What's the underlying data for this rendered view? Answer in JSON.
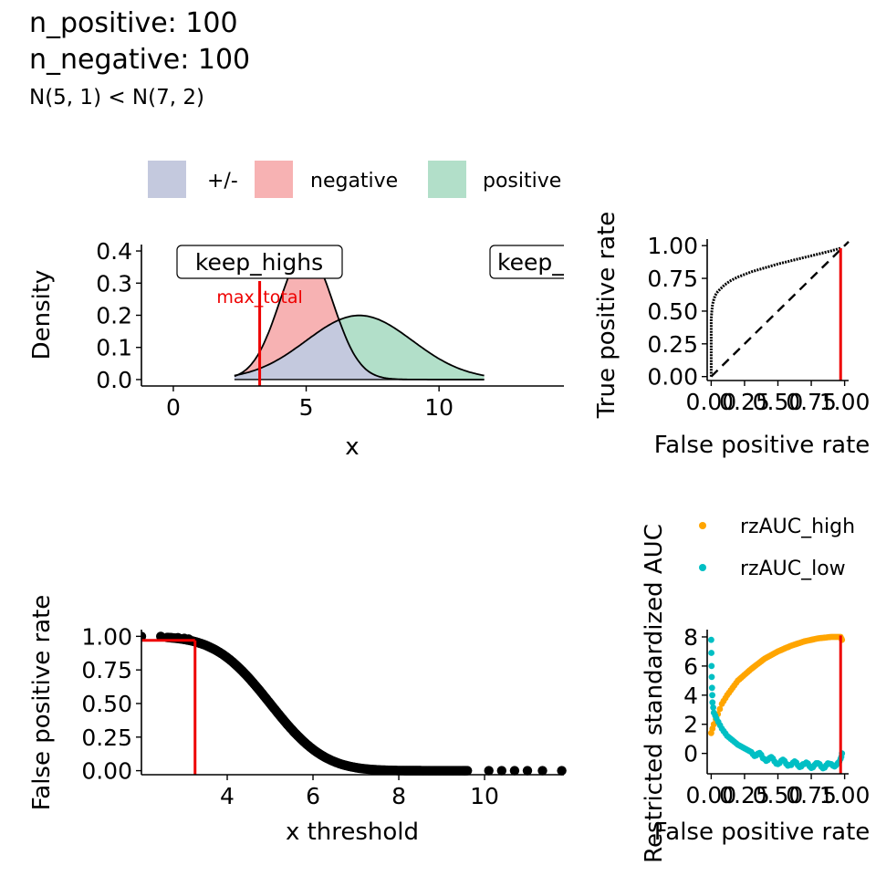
{
  "header": {
    "line1": "n_positive: 100",
    "line2": "n_negative: 100",
    "subtitle": "N(5, 1) < N(7, 2)"
  },
  "colors": {
    "both_fill": "#c4c9de",
    "negative_fill": "#f7b2b3",
    "positive_fill": "#b2dfc9",
    "threshold": "#ee0000",
    "rz_high": "#ffa500",
    "rz_low": "#00bfc4"
  },
  "chart_data": [
    {
      "id": "density",
      "type": "area",
      "xlabel": "x",
      "ylabel": "Density",
      "xlim": [
        -1.2,
        14.7
      ],
      "ylim": [
        -0.02,
        0.42
      ],
      "x_ticks": [
        0,
        5,
        10
      ],
      "x_tick_labels": [
        "0",
        "5",
        "10"
      ],
      "y_ticks": [
        0.0,
        0.1,
        0.2,
        0.3,
        0.4
      ],
      "y_tick_labels": [
        "0.0",
        "0.1",
        "0.2",
        "0.3",
        "0.4"
      ],
      "legend": {
        "position": "top",
        "entries": [
          {
            "label": "+/-",
            "color_key": "both_fill"
          },
          {
            "label": "negative",
            "color_key": "negative_fill"
          },
          {
            "label": "positive",
            "color_key": "positive_fill"
          }
        ]
      },
      "series": [
        {
          "name": "negative",
          "distribution": "N(5, 1)",
          "mean": 5,
          "sd": 1
        },
        {
          "name": "positive",
          "distribution": "N(7, 2)",
          "mean": 7,
          "sd": 2
        }
      ],
      "x_range": [
        2.3,
        11.7
      ],
      "threshold_x": 3.25,
      "annotations": [
        {
          "text": "keep_highs",
          "x": 3.2,
          "y": 0.35,
          "style": "label"
        },
        {
          "text": "keep_",
          "x": 12.5,
          "y": 0.35,
          "style": "label-clipped"
        },
        {
          "text": "max_total",
          "x": 3.25,
          "y": 0.245,
          "style": "red-text"
        }
      ],
      "grid": false
    },
    {
      "id": "roc",
      "type": "line",
      "xlabel": "False positive rate",
      "ylabel": "True positive rate",
      "xlim": [
        -0.03,
        1.03
      ],
      "ylim": [
        -0.03,
        1.05
      ],
      "x_ticks": [
        0,
        0.25,
        0.5,
        0.75,
        1.0
      ],
      "x_tick_labels": [
        "0.00",
        "0.25",
        "0.50",
        "0.75",
        "1.00"
      ],
      "y_ticks": [
        0,
        0.25,
        0.5,
        0.75,
        1.0
      ],
      "y_tick_labels": [
        "0.00",
        "0.25",
        "0.50",
        "0.75",
        "1.00"
      ],
      "points": [
        [
          0.0,
          0.0
        ],
        [
          0.0,
          0.44
        ],
        [
          0.005,
          0.5
        ],
        [
          0.01,
          0.55
        ],
        [
          0.02,
          0.59
        ],
        [
          0.03,
          0.62
        ],
        [
          0.05,
          0.65
        ],
        [
          0.08,
          0.68
        ],
        [
          0.1,
          0.7
        ],
        [
          0.15,
          0.735
        ],
        [
          0.2,
          0.76
        ],
        [
          0.3,
          0.8
        ],
        [
          0.4,
          0.83
        ],
        [
          0.5,
          0.86
        ],
        [
          0.6,
          0.885
        ],
        [
          0.7,
          0.91
        ],
        [
          0.8,
          0.935
        ],
        [
          0.9,
          0.96
        ],
        [
          0.97,
          0.98
        ]
      ],
      "diagonal": true,
      "threshold_fpr": 0.97,
      "grid": false
    },
    {
      "id": "fpr_threshold",
      "type": "scatter",
      "xlabel": "x threshold",
      "ylabel": "False positive rate",
      "xlim": [
        2.0,
        11.85
      ],
      "ylim": [
        -0.03,
        1.05
      ],
      "x_ticks": [
        4,
        6,
        8,
        10
      ],
      "x_tick_labels": [
        "4",
        "6",
        "8",
        "10"
      ],
      "y_ticks": [
        0,
        0.25,
        0.5,
        0.75,
        1.0
      ],
      "y_tick_labels": [
        "0.00",
        "0.25",
        "0.50",
        "0.75",
        "1.00"
      ],
      "curve": {
        "kind": "normal_survival",
        "mean": 5,
        "sd": 1,
        "x_from": 2.6,
        "x_to": 9.6
      },
      "sparse_points": [
        [
          2.0,
          1.0
        ],
        [
          2.45,
          1.0
        ],
        [
          2.7,
          0.99
        ],
        [
          2.85,
          0.99
        ],
        [
          3.0,
          0.985
        ],
        [
          3.1,
          0.98
        ],
        [
          10.1,
          0.0
        ],
        [
          10.4,
          0.0
        ],
        [
          10.7,
          0.0
        ],
        [
          11.0,
          0.0
        ],
        [
          11.35,
          0.0
        ],
        [
          11.8,
          0.0
        ]
      ],
      "threshold_x": 3.25,
      "threshold_fpr": 0.97,
      "grid": false
    },
    {
      "id": "rzauc",
      "type": "scatter",
      "xlabel": "False positive rate",
      "ylabel": "Restricted standardized AUC",
      "xlim": [
        -0.03,
        1.03
      ],
      "ylim": [
        -1.4,
        8.5
      ],
      "x_ticks": [
        0,
        0.25,
        0.5,
        0.75,
        1.0
      ],
      "x_tick_labels": [
        "0.00",
        "0.25",
        "0.50",
        "0.75",
        "1.00"
      ],
      "y_ticks": [
        0,
        2,
        4,
        6,
        8
      ],
      "y_tick_labels": [
        "0",
        "2",
        "4",
        "6",
        "8"
      ],
      "legend": {
        "position": "top-right",
        "entries": [
          {
            "label": "rzAUC_high",
            "color_key": "rz_high"
          },
          {
            "label": "rzAUC_low",
            "color_key": "rz_low"
          }
        ]
      },
      "series": [
        {
          "name": "rzAUC_high",
          "color_key": "rz_high",
          "points": [
            [
              0.0,
              1.4
            ],
            [
              0.02,
              2.0
            ],
            [
              0.05,
              2.7
            ],
            [
              0.08,
              3.4
            ],
            [
              0.12,
              4.0
            ],
            [
              0.2,
              5.0
            ],
            [
              0.3,
              5.8
            ],
            [
              0.4,
              6.5
            ],
            [
              0.5,
              7.0
            ],
            [
              0.6,
              7.4
            ],
            [
              0.7,
              7.7
            ],
            [
              0.8,
              7.9
            ],
            [
              0.9,
              8.0
            ],
            [
              0.97,
              8.0
            ],
            [
              0.98,
              7.8
            ]
          ]
        },
        {
          "name": "rzAUC_low",
          "color_key": "rz_low",
          "points": [
            [
              0.0,
              7.8
            ],
            [
              0.003,
              6.0
            ],
            [
              0.006,
              4.5
            ],
            [
              0.01,
              3.5
            ],
            [
              0.02,
              2.8
            ],
            [
              0.04,
              2.4
            ],
            [
              0.08,
              1.7
            ],
            [
              0.12,
              1.2
            ],
            [
              0.2,
              0.6
            ],
            [
              0.3,
              0.1
            ],
            [
              0.4,
              -0.3
            ],
            [
              0.5,
              -0.55
            ],
            [
              0.6,
              -0.7
            ],
            [
              0.7,
              -0.8
            ],
            [
              0.8,
              -0.85
            ],
            [
              0.9,
              -0.85
            ],
            [
              0.95,
              -0.6
            ],
            [
              0.97,
              -0.2
            ],
            [
              0.98,
              0.0
            ]
          ]
        }
      ],
      "threshold_fpr": 0.97,
      "grid": false
    }
  ]
}
